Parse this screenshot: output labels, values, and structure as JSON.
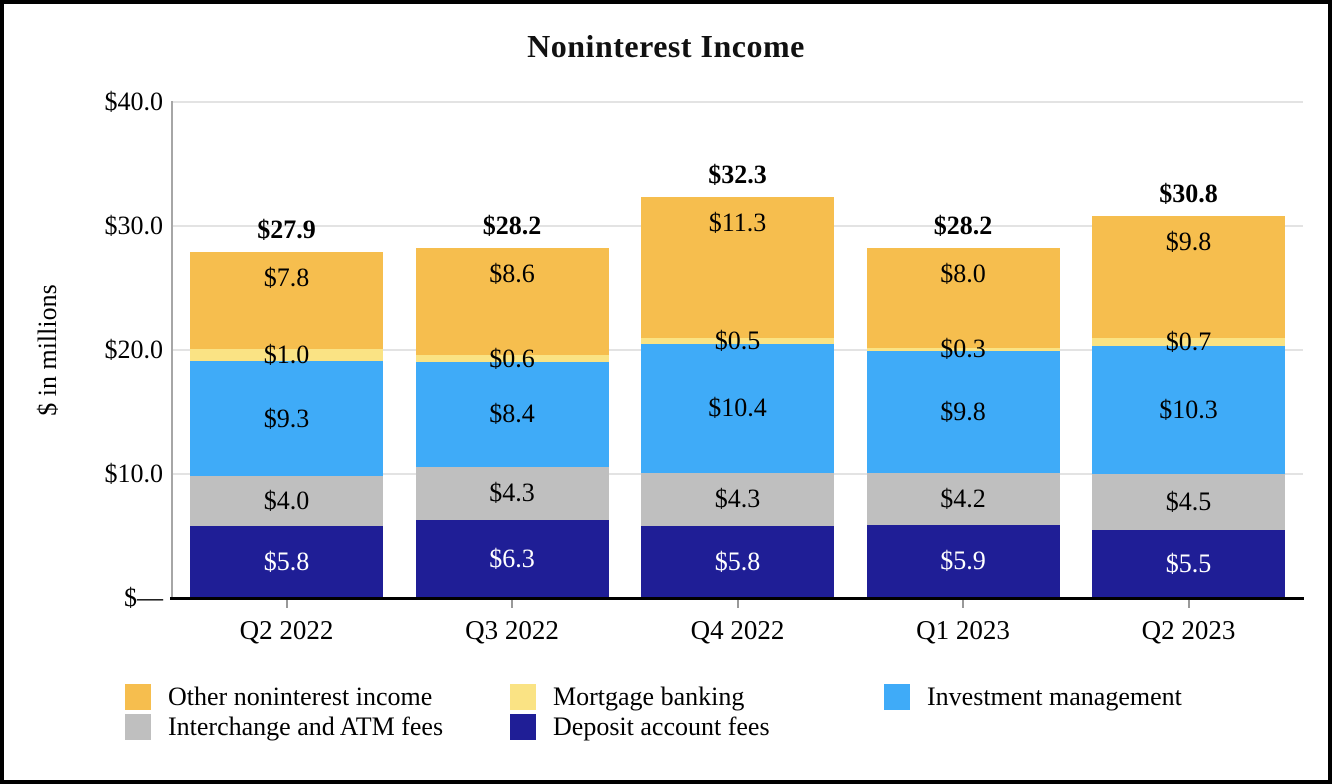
{
  "chart_data": {
    "type": "bar",
    "stacked": true,
    "title": "Noninterest Income",
    "ylabel": "$ in millions",
    "ylim": [
      0,
      40
    ],
    "grid": true,
    "categories": [
      "Q2 2022",
      "Q3 2022",
      "Q4 2022",
      "Q1 2023",
      "Q2 2023"
    ],
    "series": [
      {
        "name": "Deposit account fees",
        "color": "#1f1e96",
        "label_color": "#ffffff",
        "label_position": "center",
        "values": [
          5.8,
          6.3,
          5.8,
          5.9,
          5.5
        ]
      },
      {
        "name": "Interchange and ATM fees",
        "color": "#bfbfbf",
        "label_color": "#000000",
        "label_position": "center",
        "values": [
          4.0,
          4.3,
          4.3,
          4.2,
          4.5
        ]
      },
      {
        "name": "Investment management",
        "color": "#3fabf8",
        "label_color": "#000000",
        "label_position": "center",
        "values": [
          9.3,
          8.4,
          10.4,
          9.8,
          10.3
        ]
      },
      {
        "name": "Mortgage banking",
        "color": "#fae384",
        "label_color": "#000000",
        "label_position": "center",
        "values": [
          1.0,
          0.6,
          0.5,
          0.3,
          0.7
        ]
      },
      {
        "name": "Other noninterest income",
        "color": "#f6be4e",
        "label_color": "#000000",
        "label_position": "inside-top",
        "values": [
          7.8,
          8.6,
          11.3,
          8.0,
          9.8
        ]
      }
    ],
    "totals": [
      27.9,
      28.2,
      32.3,
      28.2,
      30.8
    ],
    "value_prefix": "$",
    "legend_position": "bottom"
  },
  "y_axis": {
    "label": "$ in millions",
    "ticks": [
      "$—",
      "$10.0",
      "$20.0",
      "$30.0",
      "$40.0"
    ]
  },
  "legend": {
    "items": [
      {
        "label": "Other noninterest income",
        "color": "#f6be4e"
      },
      {
        "label": "Mortgage banking",
        "color": "#fae384"
      },
      {
        "label": "Investment management",
        "color": "#3fabf8"
      },
      {
        "label": "Interchange and ATM fees",
        "color": "#bfbfbf"
      },
      {
        "label": "Deposit account fees",
        "color": "#1f1e96"
      }
    ]
  }
}
